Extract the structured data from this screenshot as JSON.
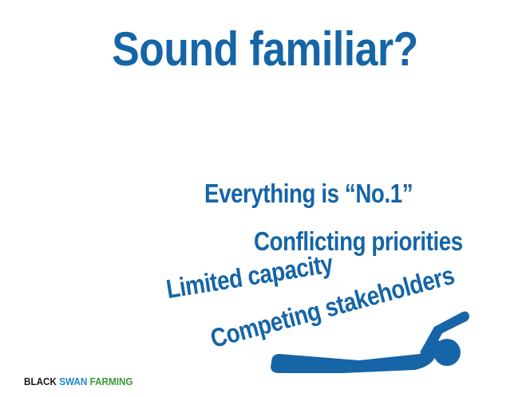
{
  "slide": {
    "title": "Sound familiar?",
    "phrases": [
      "Everything is “No.1”",
      "Conflicting priorities",
      "Limited capacity",
      "Competing stakeholders"
    ],
    "figure_icon": "fallen-person-icon",
    "brand": {
      "word1": "BLACK",
      "word2": "SWAN",
      "word3": "FARMING"
    }
  },
  "colors": {
    "primary": "#1565a7",
    "brand_black": "#1a1a1a",
    "brand_blue": "#1f86c6",
    "brand_green": "#3a9a36",
    "background": "#ffffff"
  }
}
